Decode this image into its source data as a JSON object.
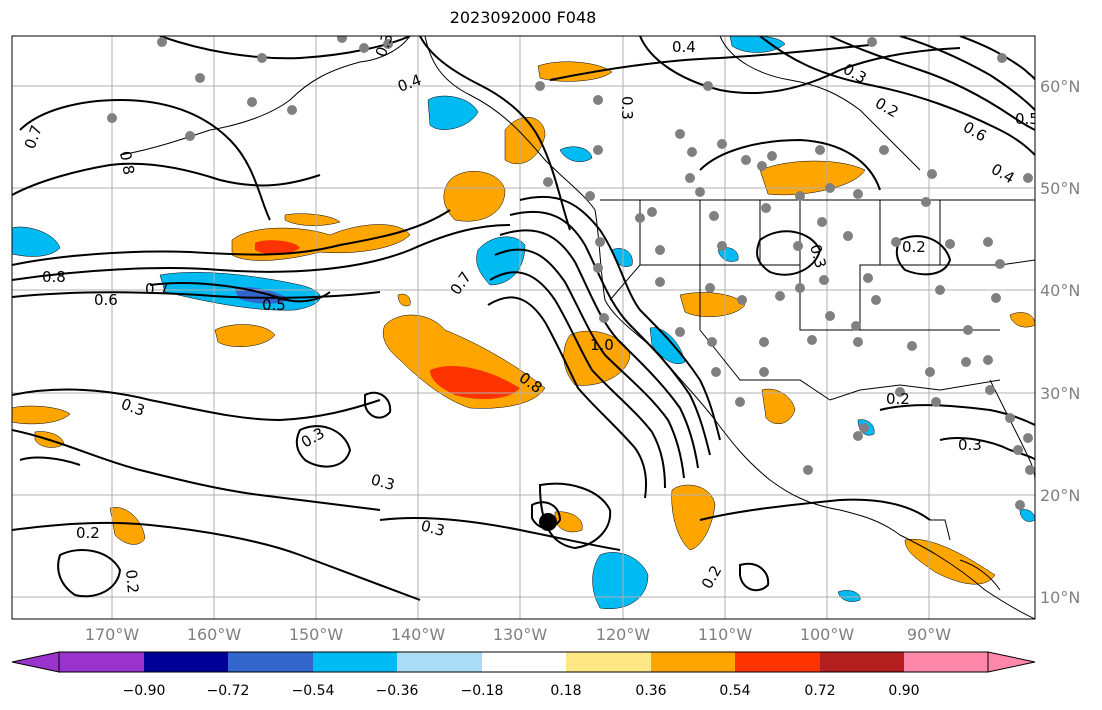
{
  "title": "2023092000 F048",
  "map": {
    "lon_labels": [
      "170°W",
      "160°W",
      "150°W",
      "140°W",
      "130°W",
      "120°W",
      "110°W",
      "100°W",
      "90°W"
    ],
    "lat_labels": [
      "60°N",
      "50°N",
      "40°N",
      "30°N",
      "20°N",
      "10°N"
    ],
    "contour_labels": [
      "0.4",
      "0.3",
      "0.3",
      "0.5",
      "0.6",
      "0.2",
      "0.4",
      "0.7",
      "0.8",
      "0.7",
      "0.6",
      "0.5",
      "0.7",
      "0.8",
      "1.0",
      "0.8",
      "0.3",
      "0.3",
      "0.3",
      "0.3",
      "0.2",
      "0.2",
      "0.2",
      "0.2",
      "0.3",
      "0.2",
      "0.3",
      "0.4",
      "0.3"
    ],
    "colors": {
      "land_outline": "#000000",
      "grid": "#b0b0b0",
      "station_dot": "#808080",
      "storm_marker": "#000000"
    }
  },
  "colorbar": {
    "ticks": [
      "−0.90",
      "−0.72",
      "−0.54",
      "−0.36",
      "−0.18",
      "0.18",
      "0.36",
      "0.54",
      "0.72",
      "0.90"
    ],
    "bins": [
      {
        "color": "#9933cc"
      },
      {
        "color": "#000099"
      },
      {
        "color": "#3366cc"
      },
      {
        "color": "#00bbf2"
      },
      {
        "color": "#aadcf5"
      },
      {
        "color": "#ffffff"
      },
      {
        "color": "#fee886"
      },
      {
        "color": "#ffa500"
      },
      {
        "color": "#ff3300"
      },
      {
        "color": "#b31f1f"
      },
      {
        "color": "#ff88aa"
      }
    ]
  }
}
